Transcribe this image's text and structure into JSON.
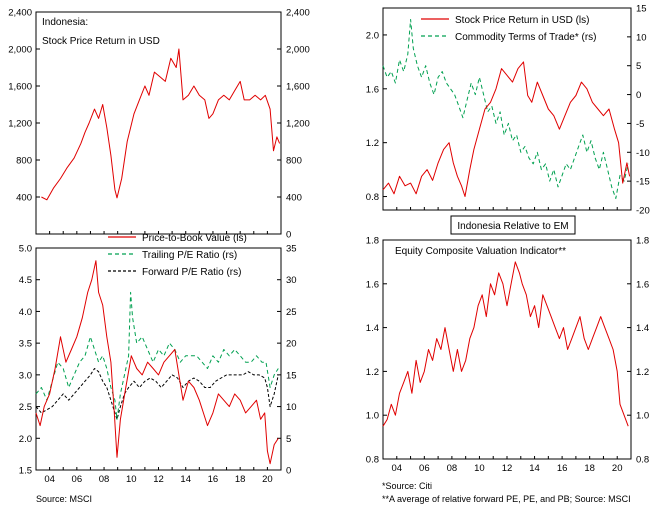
{
  "chart_data": [
    {
      "id": "p1",
      "type": "line",
      "title_lines": [
        "Indonesia:",
        "Stock Price Return in USD"
      ],
      "x_range": [
        2003,
        2021
      ],
      "x_ticks": [],
      "ylim": [
        0,
        2400
      ],
      "y_ticks_left": [
        0,
        400,
        800,
        1200,
        1600,
        2000,
        2400
      ],
      "y_ticks_right": [
        0,
        400,
        800,
        1200,
        1600,
        2000,
        2400
      ],
      "y_labels_left": [
        "",
        "400",
        "800",
        "1,200",
        "1,600",
        "2,000",
        "2,400"
      ],
      "y_labels_right": [
        "0",
        "400",
        "800",
        "1,200",
        "1,600",
        "2,000",
        "2,400"
      ],
      "series": [
        {
          "name": "Stock Price Return in USD",
          "axis": "left",
          "color": "#e00000",
          "dash": "",
          "x": [
            2003.4,
            2003.8,
            2004.3,
            2004.8,
            2005.3,
            2005.8,
            2006.3,
            2006.6,
            2006.9,
            2007.3,
            2007.6,
            2007.9,
            2008.2,
            2008.5,
            2008.8,
            2008.95,
            2009.3,
            2009.7,
            2010.2,
            2010.6,
            2011.0,
            2011.3,
            2011.7,
            2012.1,
            2012.5,
            2012.9,
            2013.3,
            2013.5,
            2013.8,
            2014.2,
            2014.6,
            2015.0,
            2015.4,
            2015.7,
            2016.0,
            2016.4,
            2016.8,
            2017.2,
            2017.6,
            2018.0,
            2018.3,
            2018.7,
            2019.1,
            2019.5,
            2019.85,
            2020.2,
            2020.45,
            2020.7,
            2020.9
          ],
          "y": [
            400,
            370,
            500,
            600,
            720,
            820,
            980,
            1100,
            1200,
            1350,
            1250,
            1400,
            1150,
            850,
            480,
            390,
            600,
            1000,
            1300,
            1450,
            1600,
            1500,
            1750,
            1700,
            1650,
            1900,
            1800,
            2000,
            1450,
            1500,
            1600,
            1500,
            1450,
            1250,
            1300,
            1450,
            1500,
            1450,
            1550,
            1650,
            1450,
            1450,
            1500,
            1450,
            1500,
            1350,
            900,
            1050,
            980
          ]
        }
      ]
    },
    {
      "id": "p2",
      "type": "line",
      "title_lines": [],
      "x_range": [
        2003,
        2021
      ],
      "x_ticks": [
        2004,
        2006,
        2008,
        2010,
        2012,
        2014,
        2016,
        2018,
        2020
      ],
      "x_labels": [
        "04",
        "06",
        "08",
        "10",
        "12",
        "14",
        "16",
        "18",
        "20"
      ],
      "ylim": [
        1.5,
        5.0
      ],
      "y_ticks_left": [
        1.5,
        2.0,
        2.5,
        3.0,
        3.5,
        4.0,
        4.5,
        5.0
      ],
      "y_labels_left": [
        "1.5",
        "2.0",
        "2.5",
        "3.0",
        "3.5",
        "4.0",
        "4.5",
        "5.0"
      ],
      "y2lim": [
        0,
        35
      ],
      "y_ticks_right": [
        0,
        5,
        10,
        15,
        20,
        25,
        30,
        35
      ],
      "y_labels_right": [
        "0",
        "5",
        "10",
        "15",
        "20",
        "25",
        "30",
        "35"
      ],
      "legend": [
        "Price-to-Book Value  (ls)",
        "Trailing P/E Ratio  (rs)",
        "Forward P/E Ratio  (rs)"
      ],
      "series": [
        {
          "name": "Price-to-Book Value (ls)",
          "axis": "left",
          "color": "#e00000",
          "dash": "",
          "x": [
            2003.0,
            2003.3,
            2003.6,
            2004.0,
            2004.4,
            2004.8,
            2005.2,
            2005.6,
            2006.0,
            2006.4,
            2006.8,
            2007.1,
            2007.4,
            2007.6,
            2007.9,
            2008.2,
            2008.5,
            2008.75,
            2008.95,
            2009.2,
            2009.6,
            2010.0,
            2010.4,
            2010.8,
            2011.2,
            2011.6,
            2012.0,
            2012.4,
            2012.8,
            2013.2,
            2013.5,
            2013.8,
            2014.2,
            2014.6,
            2015.0,
            2015.3,
            2015.6,
            2016.0,
            2016.4,
            2016.8,
            2017.2,
            2017.6,
            2018.0,
            2018.4,
            2018.8,
            2019.2,
            2019.5,
            2019.8,
            2020.0,
            2020.2,
            2020.5,
            2020.8
          ],
          "y": [
            2.4,
            2.2,
            2.5,
            2.7,
            3.1,
            3.6,
            3.2,
            3.4,
            3.6,
            3.9,
            4.3,
            4.5,
            4.8,
            4.3,
            4.1,
            3.6,
            3.2,
            2.4,
            1.7,
            2.3,
            2.8,
            3.3,
            3.1,
            3.0,
            3.2,
            3.1,
            3.0,
            3.2,
            3.3,
            3.4,
            3.0,
            2.6,
            2.9,
            2.8,
            2.6,
            2.4,
            2.2,
            2.4,
            2.7,
            2.6,
            2.5,
            2.7,
            2.6,
            2.4,
            2.5,
            2.6,
            2.3,
            2.4,
            1.8,
            1.6,
            1.9,
            2.0
          ]
        },
        {
          "name": "Trailing P/E Ratio (rs)",
          "axis": "right",
          "color": "#00a050",
          "dash": "4,3",
          "x": [
            2003.0,
            2003.4,
            2003.8,
            2004.2,
            2004.6,
            2005.0,
            2005.4,
            2005.8,
            2006.2,
            2006.6,
            2007.0,
            2007.3,
            2007.6,
            2007.9,
            2008.2,
            2008.5,
            2008.8,
            2008.95,
            2009.2,
            2009.5,
            2009.8,
            2009.95,
            2010.1,
            2010.4,
            2010.8,
            2011.2,
            2011.6,
            2012.0,
            2012.4,
            2012.8,
            2013.2,
            2013.6,
            2014.0,
            2014.4,
            2014.8,
            2015.2,
            2015.6,
            2016.0,
            2016.4,
            2016.8,
            2017.2,
            2017.6,
            2018.0,
            2018.4,
            2018.8,
            2019.2,
            2019.6,
            2019.9,
            2020.2,
            2020.5,
            2020.8
          ],
          "y": [
            12,
            13,
            11,
            14,
            17,
            16,
            13,
            15,
            17,
            18,
            21,
            19,
            17,
            18,
            16,
            13,
            11,
            8,
            12,
            15,
            18,
            28,
            24,
            20,
            21,
            19,
            17,
            19,
            18,
            20,
            19,
            17,
            18,
            18,
            18,
            17,
            16,
            18,
            17,
            19,
            18,
            19,
            18,
            17,
            17,
            18,
            17,
            17,
            13,
            15,
            16
          ]
        },
        {
          "name": "Forward P/E Ratio (rs)",
          "axis": "right",
          "color": "#000000",
          "dash": "3,2",
          "x": [
            2003.0,
            2003.4,
            2003.8,
            2004.2,
            2004.6,
            2005.0,
            2005.4,
            2005.8,
            2006.2,
            2006.6,
            2007.0,
            2007.3,
            2007.6,
            2007.9,
            2008.2,
            2008.5,
            2008.8,
            2008.95,
            2009.2,
            2009.5,
            2009.8,
            2010.2,
            2010.6,
            2011.0,
            2011.4,
            2011.8,
            2012.2,
            2012.6,
            2013.0,
            2013.4,
            2013.8,
            2014.2,
            2014.6,
            2015.0,
            2015.4,
            2015.8,
            2016.2,
            2016.6,
            2017.0,
            2017.4,
            2017.8,
            2018.2,
            2018.6,
            2019.0,
            2019.4,
            2019.8,
            2020.0,
            2020.2,
            2020.5,
            2020.8
          ],
          "y": [
            10,
            9,
            9.5,
            10,
            11,
            12,
            11,
            12,
            13,
            14,
            15,
            16,
            15.5,
            14,
            13,
            11,
            9,
            8,
            10,
            12,
            13,
            14,
            13,
            14,
            14.5,
            14,
            13,
            14,
            15,
            14.5,
            13,
            14,
            14.5,
            14,
            13,
            13,
            14,
            14.5,
            15,
            15,
            15,
            15,
            15.5,
            15,
            15,
            14.5,
            13,
            10,
            12,
            15
          ]
        }
      ]
    },
    {
      "id": "p3",
      "type": "line",
      "title_lines": [],
      "x_range": [
        2003,
        2021
      ],
      "x_ticks": [],
      "ylim": [
        0.7,
        2.2
      ],
      "y_ticks_left": [
        0.8,
        1.2,
        1.6,
        2.0
      ],
      "y_labels_left": [
        "0.8",
        "1.2",
        "1.6",
        "2.0"
      ],
      "y2lim": [
        -20,
        15
      ],
      "y_ticks_right": [
        -20,
        -15,
        -10,
        -5,
        0,
        5,
        10,
        15
      ],
      "y_labels_right": [
        "-20",
        "-15",
        "-10",
        "-5",
        "0",
        "5",
        "10",
        "15"
      ],
      "legend": [
        "Stock Price Return in USD (ls)",
        "Commodity Terms of Trade* (rs)"
      ],
      "series": [
        {
          "name": "Stock Price Return in USD (ls)",
          "axis": "left",
          "color": "#e00000",
          "dash": "",
          "x": [
            2003.0,
            2003.4,
            2003.8,
            2004.2,
            2004.6,
            2005.0,
            2005.4,
            2005.8,
            2006.2,
            2006.6,
            2007.0,
            2007.4,
            2007.8,
            2008.1,
            2008.4,
            2008.7,
            2008.95,
            2009.3,
            2009.6,
            2010.0,
            2010.4,
            2010.8,
            2011.2,
            2011.6,
            2012.0,
            2012.4,
            2012.8,
            2013.2,
            2013.5,
            2013.8,
            2014.2,
            2014.6,
            2015.0,
            2015.4,
            2015.8,
            2016.2,
            2016.6,
            2017.0,
            2017.4,
            2017.8,
            2018.2,
            2018.6,
            2019.0,
            2019.4,
            2019.8,
            2020.1,
            2020.4,
            2020.7,
            2020.9
          ],
          "y": [
            0.85,
            0.9,
            0.82,
            0.95,
            0.88,
            0.9,
            0.82,
            0.95,
            1.0,
            0.92,
            1.05,
            1.15,
            1.2,
            1.05,
            0.95,
            0.88,
            0.8,
            1.0,
            1.15,
            1.3,
            1.45,
            1.5,
            1.6,
            1.75,
            1.7,
            1.65,
            1.75,
            1.8,
            1.55,
            1.5,
            1.65,
            1.55,
            1.45,
            1.4,
            1.3,
            1.4,
            1.5,
            1.55,
            1.65,
            1.6,
            1.5,
            1.45,
            1.4,
            1.45,
            1.3,
            1.2,
            0.9,
            1.05,
            0.95
          ]
        },
        {
          "name": "Commodity Terms of Trade* (rs)",
          "axis": "right",
          "color": "#00a050",
          "dash": "4,3",
          "x": [
            2003.0,
            2003.3,
            2003.6,
            2003.9,
            2004.2,
            2004.5,
            2004.8,
            2005.0,
            2005.2,
            2005.5,
            2005.8,
            2006.1,
            2006.4,
            2006.7,
            2007.0,
            2007.3,
            2007.6,
            2007.9,
            2008.2,
            2008.5,
            2008.8,
            2009.1,
            2009.4,
            2009.7,
            2010.0,
            2010.3,
            2010.6,
            2010.9,
            2011.2,
            2011.5,
            2011.8,
            2012.1,
            2012.4,
            2012.7,
            2013.0,
            2013.3,
            2013.6,
            2013.9,
            2014.2,
            2014.5,
            2014.8,
            2015.1,
            2015.4,
            2015.7,
            2016.0,
            2016.3,
            2016.6,
            2016.9,
            2017.2,
            2017.5,
            2017.8,
            2018.1,
            2018.4,
            2018.7,
            2019.0,
            2019.3,
            2019.6,
            2019.9,
            2020.2,
            2020.5,
            2020.8
          ],
          "y": [
            5,
            3,
            4,
            2,
            6,
            4,
            7,
            13,
            8,
            5,
            3,
            5,
            2,
            0,
            3,
            4,
            2,
            1,
            0,
            -2,
            -4,
            -1,
            2,
            0,
            3,
            0,
            -3,
            -2,
            -5,
            -3,
            -7,
            -5,
            -8,
            -7,
            -10,
            -9,
            -11,
            -12,
            -10,
            -13,
            -12,
            -15,
            -13,
            -16,
            -14,
            -12,
            -13,
            -11,
            -9,
            -7,
            -10,
            -8,
            -11,
            -13,
            -10,
            -13,
            -16,
            -18,
            -14,
            -15,
            -12
          ]
        }
      ]
    },
    {
      "id": "p4",
      "type": "line",
      "title_lines": [
        "Equity Composite Valuation Indicator**"
      ],
      "boxed_title": "Indonesia Relative to EM",
      "x_range": [
        2003,
        2021
      ],
      "x_ticks": [
        2004,
        2006,
        2008,
        2010,
        2012,
        2014,
        2016,
        2018,
        2020
      ],
      "x_labels": [
        "04",
        "06",
        "08",
        "10",
        "12",
        "14",
        "16",
        "18",
        "20"
      ],
      "ylim": [
        0.8,
        1.8
      ],
      "y_ticks_left": [
        0.8,
        1.0,
        1.2,
        1.4,
        1.6,
        1.8
      ],
      "y_labels_left": [
        "0.8",
        "1.0",
        "1.2",
        "1.4",
        "1.6",
        "1.8"
      ],
      "y_ticks_right": [
        0.8,
        1.0,
        1.2,
        1.4,
        1.6,
        1.8
      ],
      "y_labels_right": [
        "0.8",
        "1.0",
        "1.2",
        "1.4",
        "1.6",
        "1.8"
      ],
      "series": [
        {
          "name": "Equity Composite Valuation Indicator",
          "axis": "left",
          "color": "#e00000",
          "dash": "",
          "x": [
            2003.0,
            2003.3,
            2003.6,
            2003.9,
            2004.2,
            2004.5,
            2004.8,
            2005.1,
            2005.4,
            2005.7,
            2006.0,
            2006.3,
            2006.6,
            2006.9,
            2007.2,
            2007.5,
            2007.8,
            2008.1,
            2008.4,
            2008.7,
            2009.0,
            2009.3,
            2009.6,
            2009.9,
            2010.2,
            2010.5,
            2010.8,
            2011.1,
            2011.4,
            2011.7,
            2012.0,
            2012.3,
            2012.6,
            2012.9,
            2013.1,
            2013.4,
            2013.7,
            2014.0,
            2014.3,
            2014.6,
            2014.9,
            2015.2,
            2015.5,
            2015.8,
            2016.1,
            2016.4,
            2016.7,
            2017.0,
            2017.3,
            2017.6,
            2017.9,
            2018.2,
            2018.5,
            2018.8,
            2019.1,
            2019.4,
            2019.7,
            2020.0,
            2020.2,
            2020.5,
            2020.8
          ],
          "y": [
            0.95,
            0.98,
            1.05,
            1.0,
            1.1,
            1.15,
            1.2,
            1.1,
            1.25,
            1.15,
            1.2,
            1.3,
            1.25,
            1.35,
            1.3,
            1.4,
            1.3,
            1.2,
            1.3,
            1.2,
            1.25,
            1.35,
            1.4,
            1.5,
            1.55,
            1.45,
            1.6,
            1.55,
            1.65,
            1.6,
            1.5,
            1.6,
            1.7,
            1.65,
            1.6,
            1.55,
            1.45,
            1.5,
            1.4,
            1.55,
            1.5,
            1.45,
            1.4,
            1.35,
            1.4,
            1.3,
            1.35,
            1.4,
            1.45,
            1.35,
            1.3,
            1.35,
            1.4,
            1.45,
            1.4,
            1.35,
            1.3,
            1.2,
            1.05,
            1.0,
            0.95
          ]
        }
      ]
    }
  ],
  "footer": {
    "left_source": "Source: MSCI",
    "right_note1": "*Source: Citi",
    "right_note2": "**A average of relative forward PE, PE, and PB; Source: MSCI"
  }
}
